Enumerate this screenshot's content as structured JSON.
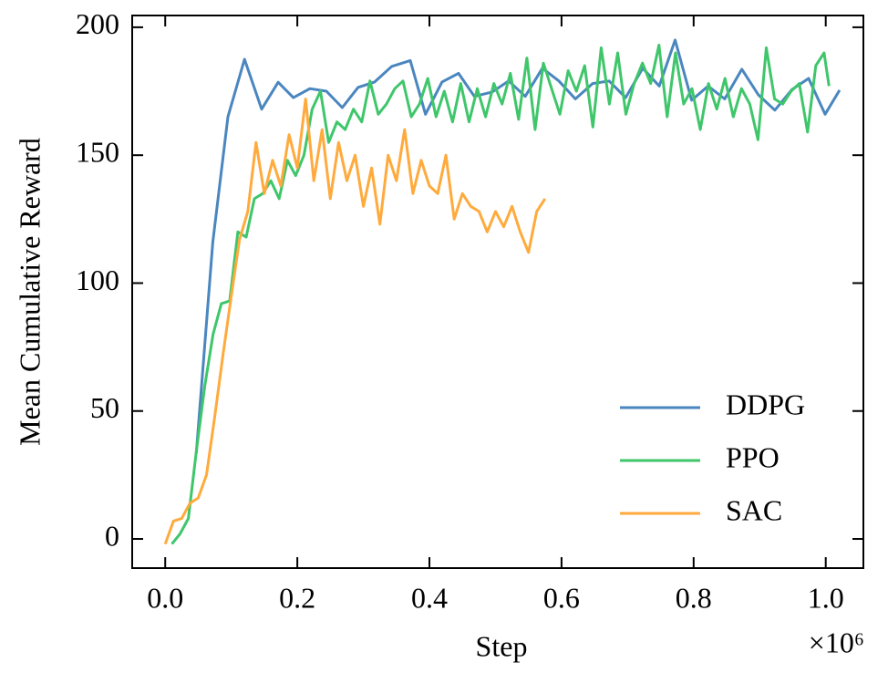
{
  "chart_data": {
    "type": "line",
    "xlabel": "Step",
    "ylabel": "Mean Cumulative Reward",
    "x_offset_label": "×10⁶",
    "xlim": [
      -0.05,
      1.057
    ],
    "ylim": [
      -11.4,
      204.6
    ],
    "xticks": [
      {
        "value": 0,
        "label": "0.0"
      },
      0.2,
      0.4,
      0.6,
      0.8,
      {
        "value": 1,
        "label": "1.0"
      }
    ],
    "yticks": [
      0,
      50,
      100,
      150,
      200
    ],
    "legend_position": "lower right",
    "series": [
      {
        "name": "DDPG",
        "color": "#4a86bf",
        "x": [
          0.047,
          0.072,
          0.095,
          0.12,
          0.146,
          0.171,
          0.194,
          0.219,
          0.244,
          0.268,
          0.292,
          0.317,
          0.343,
          0.371,
          0.394,
          0.419,
          0.444,
          0.468,
          0.495,
          0.52,
          0.545,
          0.571,
          0.596,
          0.621,
          0.647,
          0.672,
          0.697,
          0.723,
          0.748,
          0.772,
          0.797,
          0.822,
          0.847,
          0.873,
          0.898,
          0.923,
          0.949,
          0.974,
          0.999,
          1.021
        ],
        "values": [
          33.5,
          116,
          165,
          187.5,
          168,
          178.5,
          172.5,
          176,
          175,
          168.6,
          176.5,
          178.6,
          184.7,
          187,
          166,
          178.6,
          182,
          173,
          174.7,
          179,
          173,
          184,
          179,
          172,
          178,
          179,
          172.5,
          184,
          177,
          195,
          171.5,
          177,
          172,
          183.6,
          173.6,
          167.6,
          175.7,
          180,
          166,
          175.4
        ]
      },
      {
        "name": "PPO",
        "color": "#3fc66b",
        "x": [
          0.01,
          0.0225,
          0.035,
          0.0475,
          0.06,
          0.0725,
          0.085,
          0.0975,
          0.11,
          0.1225,
          0.135,
          0.1475,
          0.16,
          0.1725,
          0.185,
          0.1975,
          0.21,
          0.2225,
          0.235,
          0.2475,
          0.26,
          0.2725,
          0.285,
          0.2975,
          0.31,
          0.3225,
          0.335,
          0.3475,
          0.36,
          0.3725,
          0.385,
          0.3975,
          0.41,
          0.4225,
          0.435,
          0.4475,
          0.46,
          0.4725,
          0.485,
          0.4975,
          0.51,
          0.5225,
          0.535,
          0.5475,
          0.56,
          0.5725,
          0.585,
          0.5975,
          0.61,
          0.6225,
          0.635,
          0.6475,
          0.66,
          0.6725,
          0.685,
          0.6975,
          0.71,
          0.7225,
          0.735,
          0.7475,
          0.76,
          0.7725,
          0.785,
          0.7975,
          0.81,
          0.8225,
          0.835,
          0.8475,
          0.86,
          0.8725,
          0.885,
          0.8975,
          0.91,
          0.9225,
          0.935,
          0.9475,
          0.96,
          0.9725,
          0.985,
          0.9975,
          1.005
        ],
        "values": [
          -2,
          2,
          8,
          35,
          60,
          80,
          92,
          93,
          120,
          118,
          133,
          135,
          140,
          133,
          148,
          142,
          150,
          168,
          175,
          155,
          163,
          160,
          168,
          163,
          179,
          166,
          170,
          176,
          179,
          165,
          170,
          180,
          165,
          175,
          163,
          178,
          163,
          176,
          165,
          178,
          170,
          182,
          164,
          188,
          160,
          186,
          176,
          166,
          183,
          175,
          185,
          161,
          192,
          170,
          190,
          166,
          178,
          186,
          178,
          193,
          165,
          190,
          170,
          176,
          160,
          178,
          168,
          180,
          165,
          176,
          170,
          156,
          192,
          172,
          170,
          175,
          178,
          159,
          185,
          190,
          177
        ]
      },
      {
        "name": "SAC",
        "color": "#ffaa3c",
        "x": [
          0.0,
          0.0125,
          0.025,
          0.0375,
          0.05,
          0.0625,
          0.075,
          0.0875,
          0.1,
          0.1125,
          0.125,
          0.1375,
          0.15,
          0.1625,
          0.175,
          0.1875,
          0.2,
          0.2125,
          0.225,
          0.2375,
          0.25,
          0.2625,
          0.275,
          0.2875,
          0.3,
          0.3125,
          0.325,
          0.3375,
          0.35,
          0.3625,
          0.375,
          0.3875,
          0.4,
          0.4125,
          0.425,
          0.4375,
          0.45,
          0.4625,
          0.475,
          0.4875,
          0.5,
          0.5125,
          0.525,
          0.5375,
          0.55,
          0.5625,
          0.575
        ],
        "values": [
          -2,
          7,
          8,
          14,
          16,
          25,
          48,
          72,
          95,
          117,
          128,
          155,
          135,
          148,
          138,
          158,
          145,
          172,
          140,
          160,
          133,
          155,
          140,
          150,
          130,
          145,
          123,
          150,
          140,
          160,
          135,
          148,
          138,
          135,
          150,
          125,
          135,
          130,
          128,
          120,
          128,
          122,
          130,
          120,
          112,
          128,
          133
        ]
      }
    ]
  }
}
